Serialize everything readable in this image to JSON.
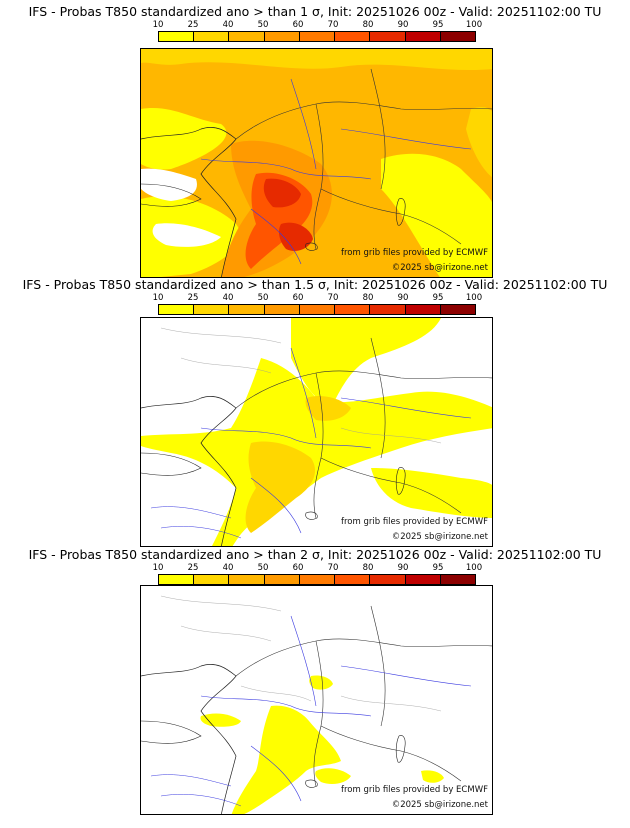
{
  "legend": {
    "ticks": [
      "10",
      "25",
      "40",
      "50",
      "60",
      "70",
      "80",
      "90",
      "95",
      "100"
    ],
    "colors": [
      "#ffff00",
      "#ffd700",
      "#ffb700",
      "#ff9a00",
      "#ff7a00",
      "#ff5500",
      "#e62a00",
      "#bf0000",
      "#8c0000"
    ]
  },
  "panels": [
    {
      "title": "IFS - Probas T850  standardized ano > than 1 σ, Init: 20251026 00z - Valid: 20251102:00 TU",
      "credit_source": "from grib files provided by ECMWF",
      "credit_copyright": "©2025 sb@irizone.net"
    },
    {
      "title": "IFS - Probas T850  standardized ano > than 1.5 σ, Init: 20251026 00z - Valid: 20251102:00 TU",
      "credit_source": "from grib files provided by ECMWF",
      "credit_copyright": "©2025 sb@irizone.net"
    },
    {
      "title": "IFS - Probas T850  standardized ano > than 2 σ, Init: 20251026 00z - Valid: 20251102:00 TU",
      "credit_source": "from grib files provided by ECMWF",
      "credit_copyright": "©2025 sb@irizone.net"
    }
  ]
}
